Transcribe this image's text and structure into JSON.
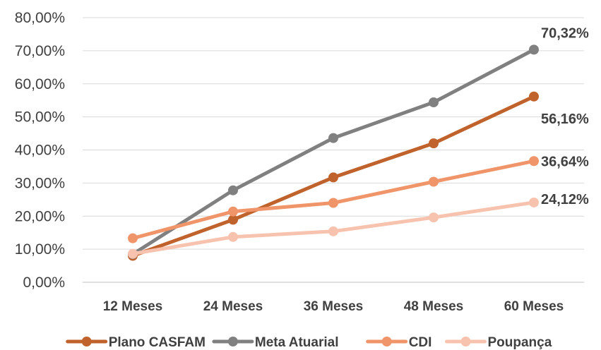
{
  "chart_data": {
    "type": "line",
    "categories": [
      "12 Meses",
      "24 Meses",
      "36 Meses",
      "48 Meses",
      "60 Meses"
    ],
    "ylim": [
      0,
      80
    ],
    "yticks": [
      "0,00%",
      "10,00%",
      "20,00%",
      "30,00%",
      "40,00%",
      "50,00%",
      "60,00%",
      "70,00%",
      "80,00%"
    ],
    "grid": true,
    "legend": "bottom",
    "series": [
      {
        "name": "Plano CASFAM",
        "color": "#C0622B",
        "values": [
          8.0,
          18.9,
          31.7,
          42.0,
          56.16
        ],
        "end_label": "56,16%"
      },
      {
        "name": "Meta Atuarial",
        "color": "#808080",
        "values": [
          8.5,
          27.8,
          43.6,
          54.4,
          70.32
        ],
        "end_label": "70,32%"
      },
      {
        "name": "CDI",
        "color": "#F0956A",
        "values": [
          13.3,
          21.4,
          24.0,
          30.4,
          36.64
        ],
        "end_label": "36,64%"
      },
      {
        "name": "Poupança",
        "color": "#F7C3AE",
        "values": [
          8.6,
          13.7,
          15.4,
          19.6,
          24.12
        ],
        "end_label": "24,12%"
      }
    ]
  }
}
